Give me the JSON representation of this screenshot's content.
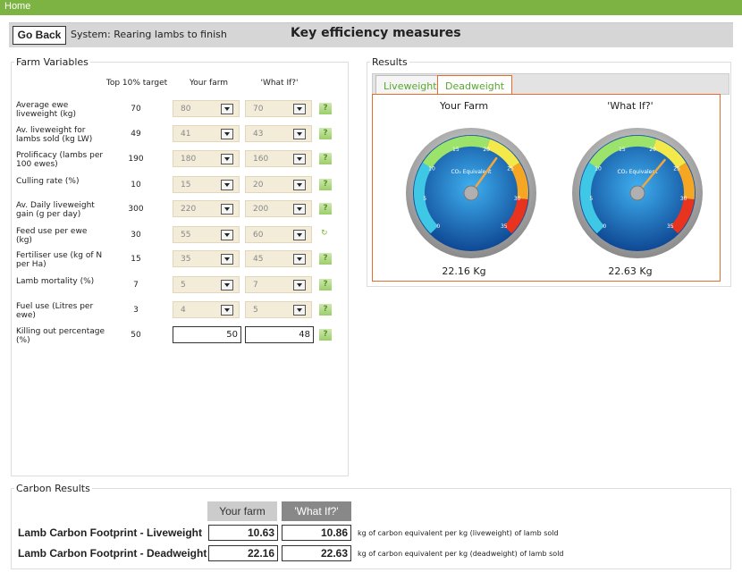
{
  "nav": {
    "home": "Home"
  },
  "header": {
    "go_back": "Go Back",
    "system": "System: Rearing lambs to finish",
    "title": "Key efficiency measures"
  },
  "farm_variables": {
    "legend": "Farm Variables",
    "col_target": "Top 10% target",
    "col_yours": "Your farm",
    "col_whatif": "'What If?'",
    "rows": [
      {
        "label": "Average ewe liveweight (kg)",
        "target": "70",
        "yours": "80",
        "whatif": "70"
      },
      {
        "label": "Av. liveweight for lambs sold (kg LW)",
        "target": "49",
        "yours": "41",
        "whatif": "43"
      },
      {
        "label": "Prolificacy (lambs per 100 ewes)",
        "target": "190",
        "yours": "180",
        "whatif": "160"
      },
      {
        "label": "Culling rate (%)",
        "target": "10",
        "yours": "15",
        "whatif": "20"
      },
      {
        "label": "Av. Daily liveweight gain (g per day)",
        "target": "300",
        "yours": "220",
        "whatif": "200"
      },
      {
        "label": "Feed use per ewe (kg)",
        "target": "30",
        "yours": "55",
        "whatif": "60"
      },
      {
        "label": "Fertiliser use (kg of N per Ha)",
        "target": "15",
        "yours": "35",
        "whatif": "45"
      },
      {
        "label": "Lamb mortality (%)",
        "target": "7",
        "yours": "5",
        "whatif": "7"
      },
      {
        "label": "Fuel use (Litres per ewe)",
        "target": "3",
        "yours": "4",
        "whatif": "5"
      },
      {
        "label": "Killing out percentage (%)",
        "target": "50",
        "yours": "50",
        "whatif": "48"
      }
    ],
    "help_glyph": "?"
  },
  "results": {
    "legend": "Results",
    "tabs": [
      "Liveweight",
      "Deadweight"
    ],
    "active_tab": "Deadweight",
    "gauges": [
      {
        "title": "Your Farm",
        "value": "22.16 Kg",
        "reading": 22.16
      },
      {
        "title": "'What If?'",
        "value": "22.63 Kg",
        "reading": 22.63
      }
    ],
    "gauge_label": "CO₂ Equivalent",
    "gauge_ticks": [
      "0",
      "5",
      "10",
      "15",
      "20",
      "25",
      "30",
      "35"
    ],
    "colors": {
      "accent": "#7cb342",
      "tab_border": "#e36c2e"
    }
  },
  "carbon_results": {
    "legend": "Carbon Results",
    "col_yours": "Your farm",
    "col_whatif": "'What If?'",
    "rows": [
      {
        "label": "Lamb Carbon Footprint - Liveweight",
        "yours": "10.63",
        "whatif": "10.86",
        "note": "kg of carbon equivalent per kg (liveweight) of lamb sold"
      },
      {
        "label": "Lamb Carbon Footprint - Deadweight",
        "yours": "22.16",
        "whatif": "22.63",
        "note": "kg of carbon equivalent per kg (deadweight) of lamb sold"
      }
    ]
  }
}
